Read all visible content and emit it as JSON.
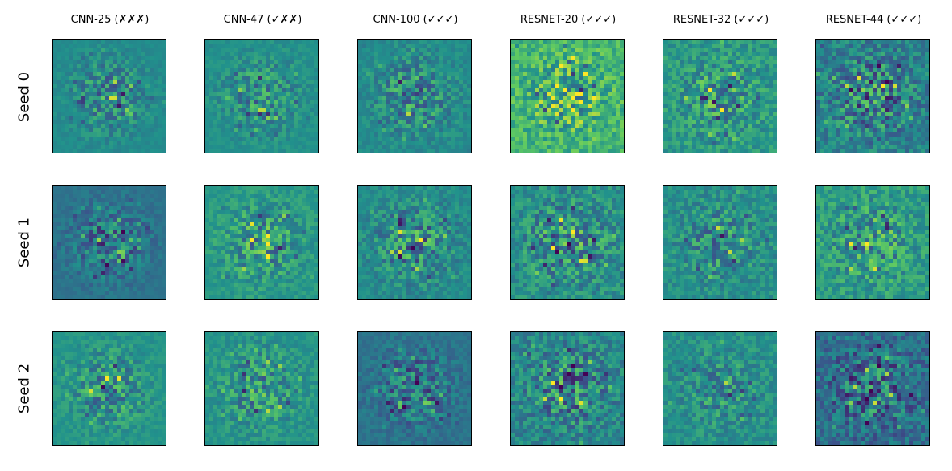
{
  "columns": [
    {
      "label": "CNN-25 (✗✗✗)"
    },
    {
      "label": "CNN-47 (✓✗✗)"
    },
    {
      "label": "CNN-100 (✓✓✓)"
    },
    {
      "label": "RESNET-20 (✓✓✓)"
    },
    {
      "label": "RESNET-32 (✓✓✓)"
    },
    {
      "label": "RESNET-44 (✓✓✓)"
    }
  ],
  "rows": [
    {
      "label": "Seed 0"
    },
    {
      "label": "Seed 1"
    },
    {
      "label": "Seed 2"
    }
  ],
  "colormap": [
    "#440154",
    "#3b528b",
    "#21918c",
    "#5ec962",
    "#fde725"
  ]
}
